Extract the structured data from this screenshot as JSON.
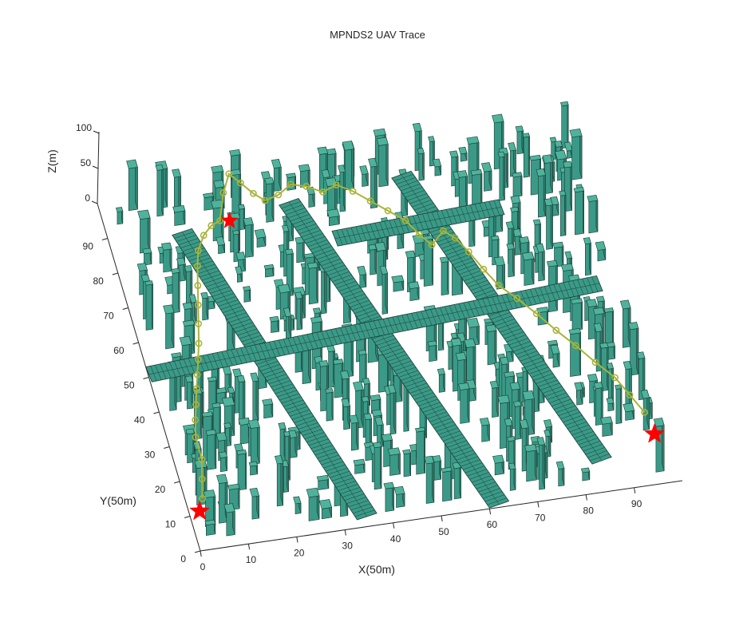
{
  "figure": {
    "title": "MPNDS2 UAV Trace"
  },
  "chart_data": {
    "type": "3d-voxel-trace",
    "title": "MPNDS2 UAV Trace",
    "xlabel": "X(50m)",
    "ylabel": "Y(50m)",
    "zlabel": "Z(m)",
    "xlim": [
      0,
      100
    ],
    "ylim": [
      0,
      100
    ],
    "zlim": [
      0,
      100
    ],
    "x_ticks": [
      "0",
      "10",
      "20",
      "30",
      "40",
      "50",
      "60",
      "70",
      "80",
      "90"
    ],
    "y_ticks": [
      "0",
      "10",
      "20",
      "30",
      "40",
      "50",
      "60",
      "70",
      "80",
      "90"
    ],
    "z_ticks": [
      "0",
      "50",
      "100"
    ],
    "obstacle_color": "#3a9a87",
    "obstacle_edge_color": "#1c3d36",
    "trace_color": "#a8b43a",
    "marker_color": "#ff0000",
    "roads": [
      {
        "from": [
          15,
          88
        ],
        "to": [
          35,
          2
        ]
      },
      {
        "from": [
          38,
          92
        ],
        "to": [
          62,
          0
        ]
      },
      {
        "from": [
          62,
          95
        ],
        "to": [
          85,
          8
        ]
      },
      {
        "from": [
          0,
          50
        ],
        "to": [
          95,
          57
        ]
      },
      {
        "from": [
          45,
          80
        ],
        "to": [
          80,
          82
        ]
      }
    ],
    "start_points": [
      {
        "x": 2,
        "y": 10,
        "z": 5
      },
      {
        "x": 97,
        "y": 13,
        "z": 5
      }
    ],
    "goal_point": {
      "x": 24,
      "y": 84,
      "z": 30
    },
    "trace": [
      {
        "x": 3,
        "y": 12,
        "z": 12
      },
      {
        "x": 4,
        "y": 17,
        "z": 14
      },
      {
        "x": 5,
        "y": 22,
        "z": 16
      },
      {
        "x": 5,
        "y": 28,
        "z": 18
      },
      {
        "x": 6,
        "y": 33,
        "z": 17
      },
      {
        "x": 7,
        "y": 37,
        "z": 18
      },
      {
        "x": 8,
        "y": 41,
        "z": 20
      },
      {
        "x": 9,
        "y": 45,
        "z": 19
      },
      {
        "x": 10,
        "y": 49,
        "z": 20
      },
      {
        "x": 11,
        "y": 53,
        "z": 22
      },
      {
        "x": 12,
        "y": 58,
        "z": 24
      },
      {
        "x": 13,
        "y": 63,
        "z": 25
      },
      {
        "x": 14,
        "y": 68,
        "z": 27
      },
      {
        "x": 15,
        "y": 73,
        "z": 29
      },
      {
        "x": 16,
        "y": 77,
        "z": 30
      },
      {
        "x": 18,
        "y": 81,
        "z": 30
      },
      {
        "x": 20,
        "y": 83,
        "z": 32
      },
      {
        "x": 22,
        "y": 84,
        "z": 32
      },
      {
        "x": 24,
        "y": 90,
        "z": 40
      },
      {
        "x": 26,
        "y": 94,
        "z": 45
      },
      {
        "x": 28,
        "y": 92,
        "z": 40
      },
      {
        "x": 30,
        "y": 89,
        "z": 38
      },
      {
        "x": 32,
        "y": 87,
        "z": 36
      },
      {
        "x": 35,
        "y": 88,
        "z": 36
      },
      {
        "x": 38,
        "y": 90,
        "z": 38
      },
      {
        "x": 41,
        "y": 89,
        "z": 37
      },
      {
        "x": 44,
        "y": 87,
        "z": 36
      },
      {
        "x": 47,
        "y": 88,
        "z": 38
      },
      {
        "x": 50,
        "y": 86,
        "z": 36
      },
      {
        "x": 53,
        "y": 83,
        "z": 34
      },
      {
        "x": 56,
        "y": 80,
        "z": 32
      },
      {
        "x": 59,
        "y": 77,
        "z": 30
      },
      {
        "x": 61,
        "y": 73,
        "z": 28
      },
      {
        "x": 63,
        "y": 70,
        "z": 26
      },
      {
        "x": 66,
        "y": 73,
        "z": 28
      },
      {
        "x": 68,
        "y": 71,
        "z": 26
      },
      {
        "x": 70,
        "y": 67,
        "z": 24
      },
      {
        "x": 72,
        "y": 62,
        "z": 22
      },
      {
        "x": 74,
        "y": 57,
        "z": 22
      },
      {
        "x": 77,
        "y": 53,
        "z": 20
      },
      {
        "x": 80,
        "y": 48,
        "z": 20
      },
      {
        "x": 83,
        "y": 43,
        "z": 18
      },
      {
        "x": 86,
        "y": 38,
        "z": 18
      },
      {
        "x": 89,
        "y": 33,
        "z": 16
      },
      {
        "x": 92,
        "y": 28,
        "z": 16
      },
      {
        "x": 94,
        "y": 23,
        "z": 14
      },
      {
        "x": 96,
        "y": 18,
        "z": 12
      }
    ]
  }
}
